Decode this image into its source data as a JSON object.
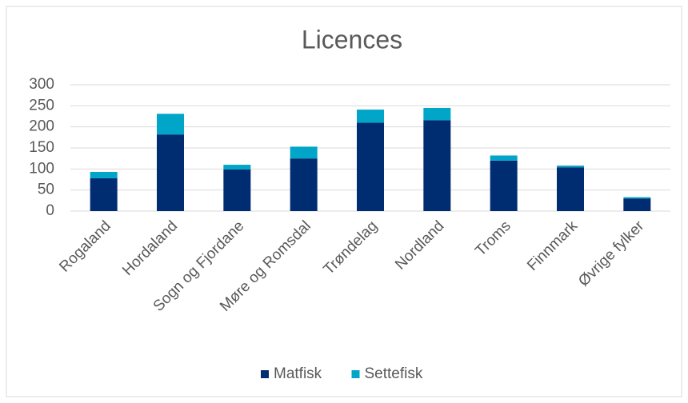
{
  "chart_data": {
    "type": "stacked_bar",
    "title": "Licences",
    "categories": [
      "Rogaland",
      "Hordaland",
      "Sogn og Fjordane",
      "Møre og Romsdal",
      "Trøndelag",
      "Nordland",
      "Troms",
      "Finnmark",
      "Øvrige fylker"
    ],
    "series": [
      {
        "name": "Matfisk",
        "color": "#002d72",
        "values": [
          78,
          182,
          99,
          125,
          210,
          216,
          120,
          104,
          30
        ]
      },
      {
        "name": "Settefisk",
        "color": "#00a5c8",
        "values": [
          15,
          49,
          11,
          28,
          31,
          29,
          12,
          4,
          3
        ]
      }
    ],
    "ylim": [
      0,
      300
    ],
    "yticks": [
      0,
      50,
      100,
      150,
      200,
      250,
      300
    ],
    "grid": true,
    "legend": "bottom"
  }
}
